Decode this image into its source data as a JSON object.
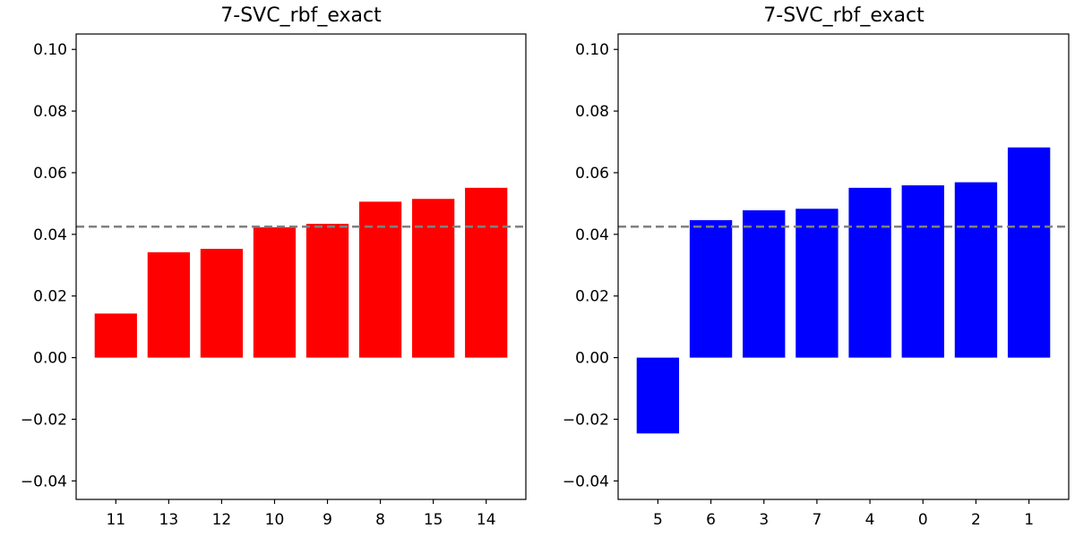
{
  "chart_data": [
    {
      "type": "bar",
      "title": "7-SVC_rbf_exact",
      "categories": [
        "11",
        "13",
        "12",
        "10",
        "9",
        "8",
        "15",
        "14"
      ],
      "values": [
        0.0143,
        0.0342,
        0.0353,
        0.0423,
        0.0434,
        0.0506,
        0.0515,
        0.0551
      ],
      "bar_color": "#ff0000",
      "reference_line": 0.0425,
      "reference_line_color": "#808080",
      "ylim": [
        -0.046,
        0.105
      ],
      "yticks": [
        -0.04,
        -0.02,
        0.0,
        0.02,
        0.04,
        0.06,
        0.08,
        0.1
      ],
      "ytick_labels": [
        "−0.04",
        "−0.02",
        "0.00",
        "0.02",
        "0.04",
        "0.06",
        "0.08",
        "0.10"
      ],
      "xlabel": "",
      "ylabel": "",
      "grid": false,
      "legend": "none"
    },
    {
      "type": "bar",
      "title": "7-SVC_rbf_exact",
      "categories": [
        "5",
        "6",
        "3",
        "7",
        "4",
        "0",
        "2",
        "1"
      ],
      "values": [
        -0.0246,
        0.0446,
        0.0478,
        0.0483,
        0.0551,
        0.0559,
        0.0569,
        0.0682
      ],
      "bar_color": "#0000ff",
      "reference_line": 0.0425,
      "reference_line_color": "#808080",
      "ylim": [
        -0.046,
        0.105
      ],
      "yticks": [
        -0.04,
        -0.02,
        0.0,
        0.02,
        0.04,
        0.06,
        0.08,
        0.1
      ],
      "ytick_labels": [
        "−0.04",
        "−0.02",
        "0.00",
        "0.02",
        "0.04",
        "0.06",
        "0.08",
        "0.10"
      ],
      "xlabel": "",
      "ylabel": "",
      "grid": false,
      "legend": "none"
    }
  ]
}
